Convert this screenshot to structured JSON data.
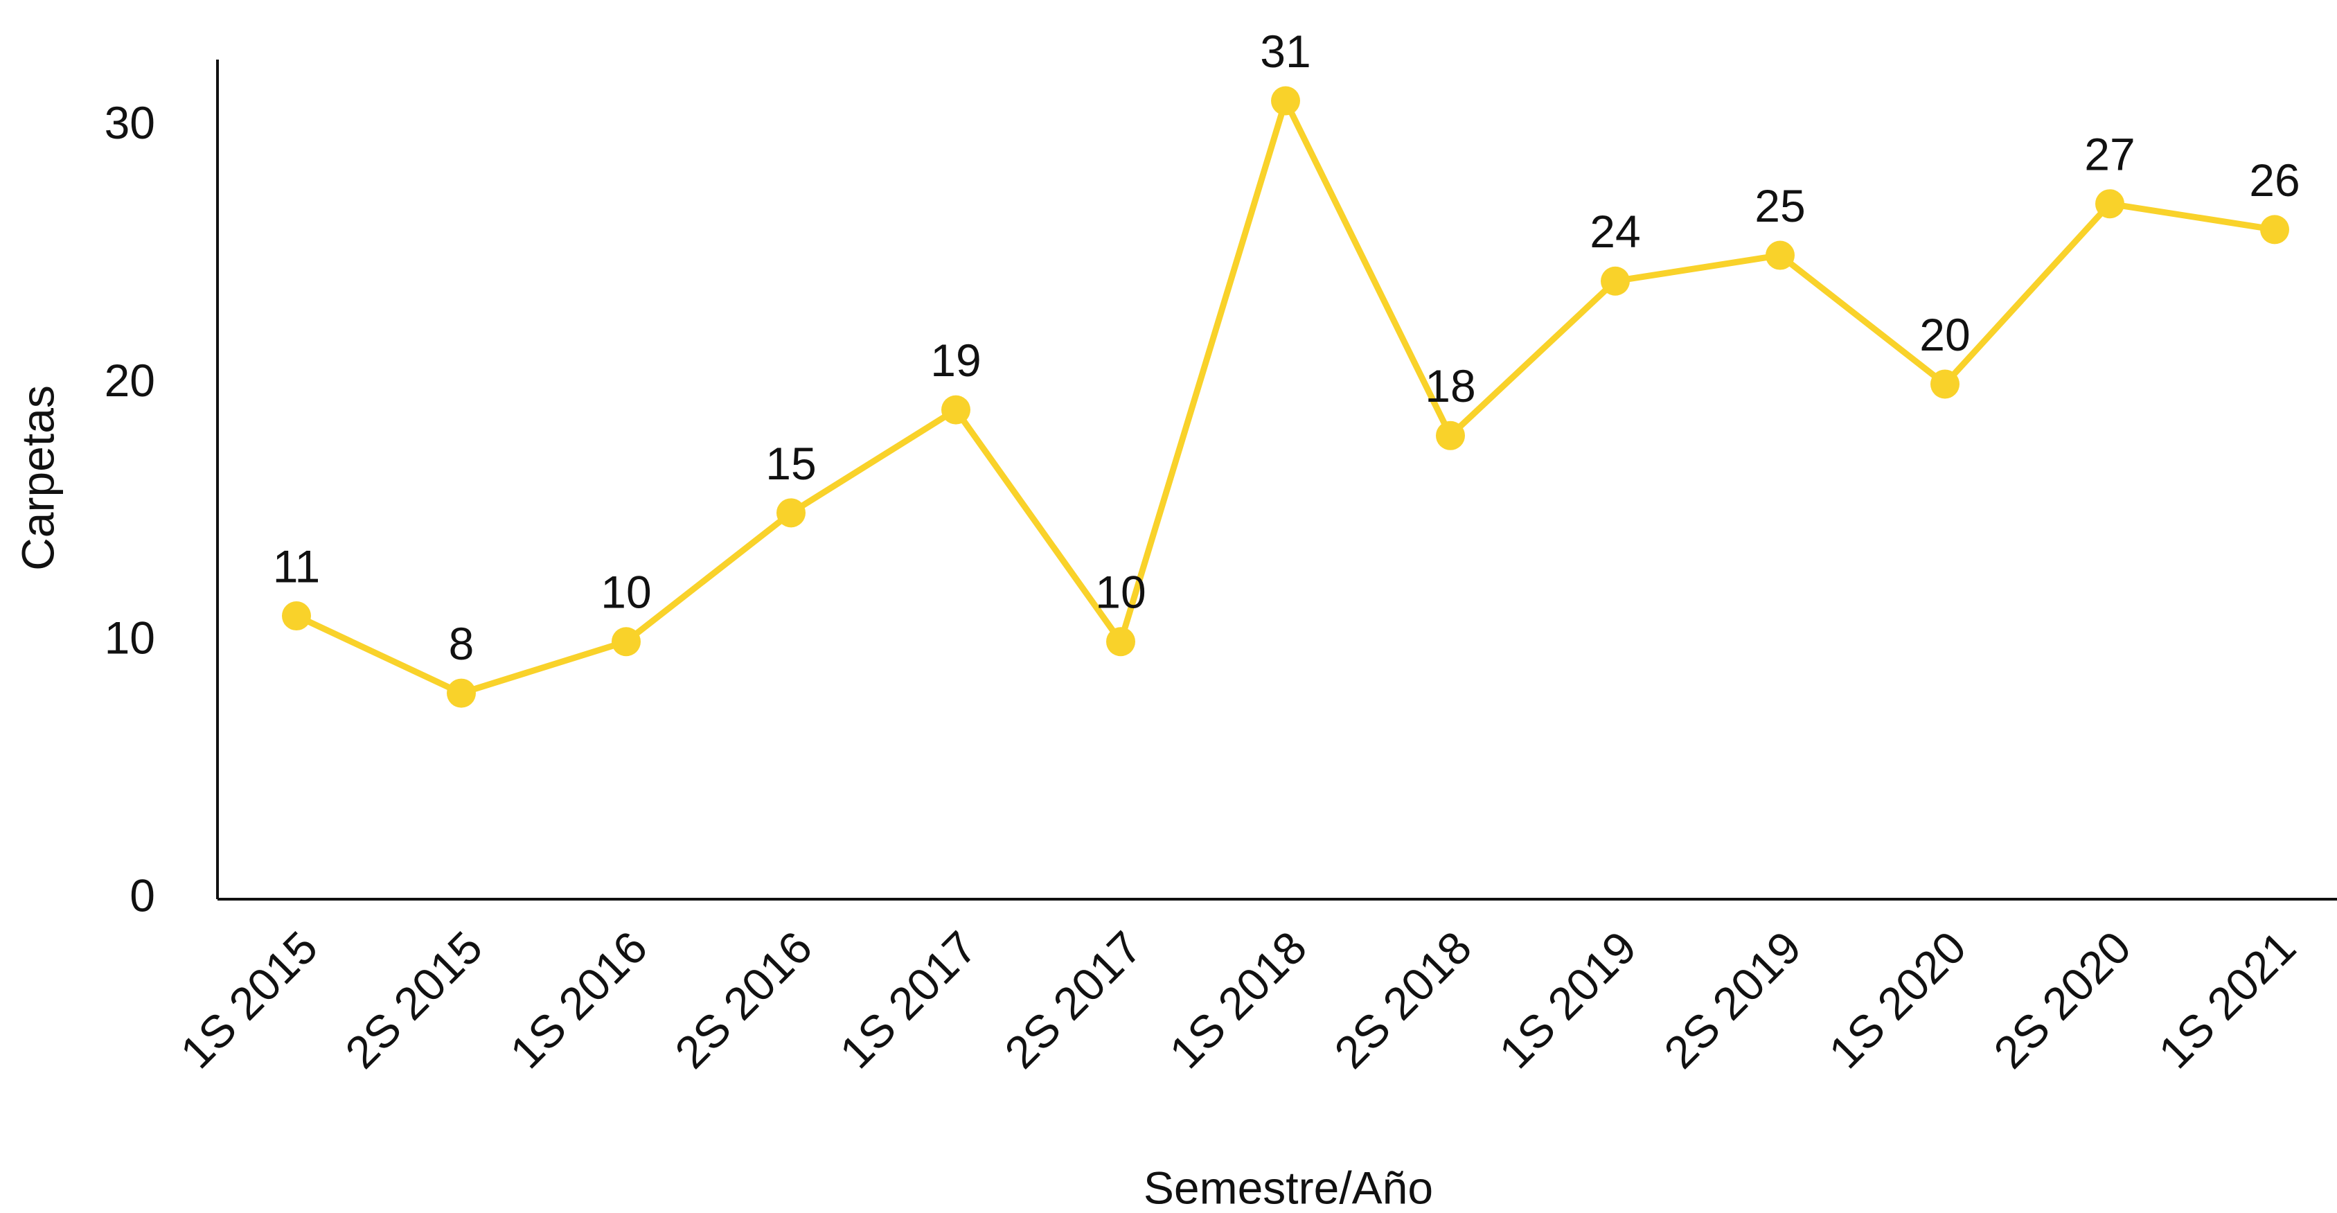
{
  "chart_data": {
    "type": "line",
    "x_label": "Semestre/Año",
    "y_label": "Carpetas",
    "categories": [
      "1S 2015",
      "2S 2015",
      "1S 2016",
      "2S 2016",
      "1S 2017",
      "2S 2017",
      "1S 2018",
      "2S 2018",
      "1S 2019",
      "2S 2019",
      "1S 2020",
      "2S 2020",
      "1S 2021"
    ],
    "series": [
      {
        "name": "Carpetas",
        "color": "#f9d22a",
        "values": [
          11,
          8,
          10,
          15,
          19,
          10,
          31,
          18,
          24,
          25,
          20,
          27,
          26
        ]
      }
    ],
    "ylim": [
      0,
      32.6
    ],
    "yticks": [
      0,
      10,
      20,
      30
    ],
    "grid": false
  }
}
